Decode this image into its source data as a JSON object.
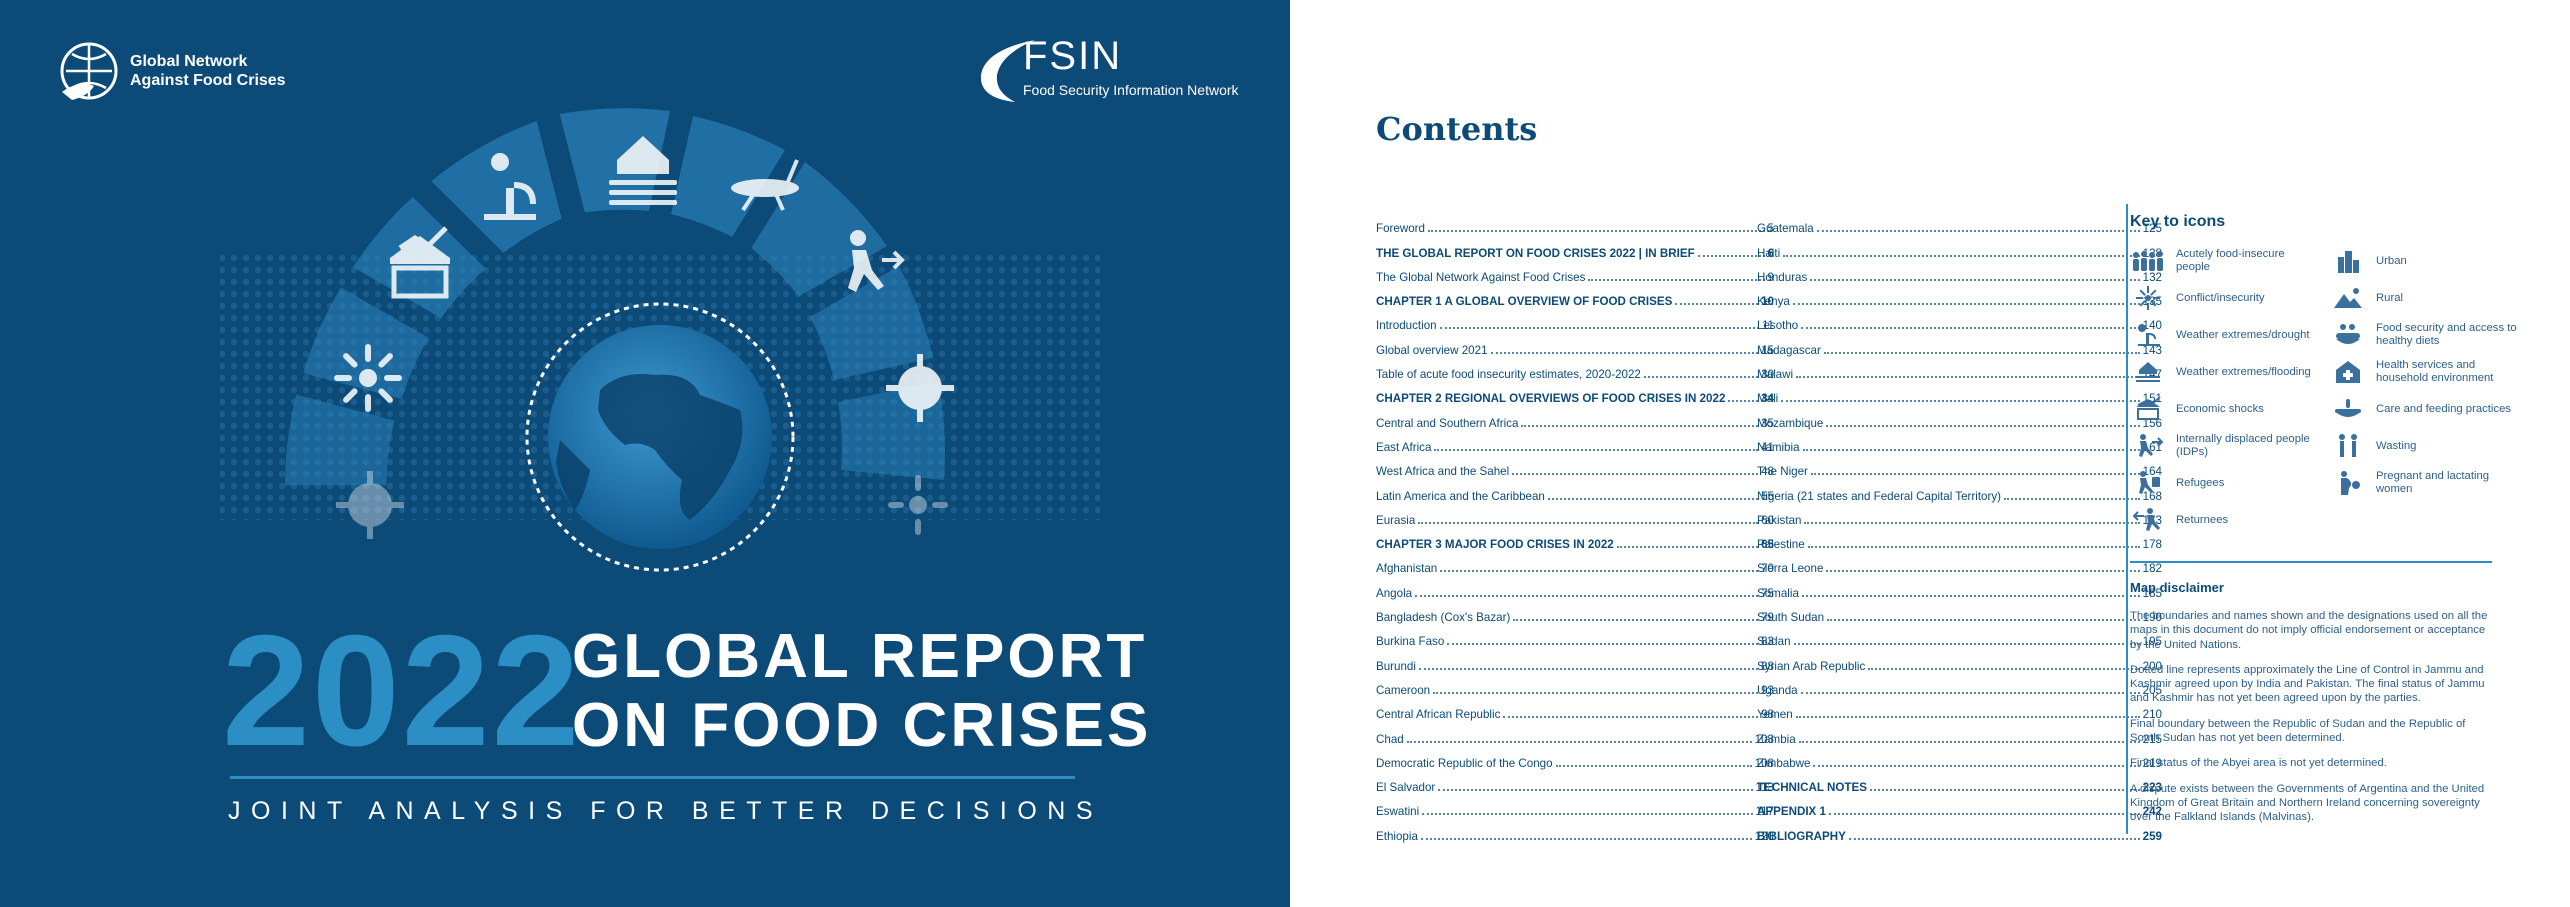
{
  "cover": {
    "org_name_line1": "Global Network",
    "org_name_line2": "Against Food Crises",
    "fsin_logo": "FSIN",
    "fsin_subtitle": "Food Security Information Network",
    "year": "2022",
    "title_line1": "GLOBAL REPORT",
    "title_line2": "ON FOOD CRISES",
    "tagline": "JOINT ANALYSIS FOR BETTER DECISIONS",
    "colors": {
      "background": "#0c4a78",
      "accent": "#2b8fc6"
    }
  },
  "contents": {
    "heading": "Contents",
    "left_column": [
      {
        "title": "Foreword",
        "page": "5",
        "bold": false
      },
      {
        "title": "THE GLOBAL REPORT ON FOOD CRISES 2022 | IN BRIEF",
        "page": "6",
        "bold": true
      },
      {
        "title": "The Global Network Against Food Crises",
        "page": "9",
        "bold": false
      },
      {
        "title": "CHAPTER 1 A GLOBAL OVERVIEW OF FOOD CRISES",
        "page": "10",
        "bold": true
      },
      {
        "title": "Introduction",
        "page": "11",
        "bold": false
      },
      {
        "title": "Global overview 2021",
        "page": "15",
        "bold": false
      },
      {
        "title": "Table of acute food insecurity estimates, 2020-2022",
        "page": "30",
        "bold": false
      },
      {
        "title": "CHAPTER 2 REGIONAL OVERVIEWS OF FOOD CRISES IN 2022",
        "page": "34",
        "bold": true
      },
      {
        "title": "Central and Southern Africa",
        "page": "35",
        "bold": false
      },
      {
        "title": "East Africa",
        "page": "41",
        "bold": false
      },
      {
        "title": "West Africa and the Sahel",
        "page": "48",
        "bold": false
      },
      {
        "title": "Latin America and the Caribbean",
        "page": "55",
        "bold": false
      },
      {
        "title": "Eurasia",
        "page": "60",
        "bold": false
      },
      {
        "title": "CHAPTER 3 MAJOR FOOD CRISES IN 2022",
        "page": "65",
        "bold": true
      },
      {
        "title": "Afghanistan",
        "page": "70",
        "bold": false
      },
      {
        "title": "Angola",
        "page": "75",
        "bold": false
      },
      {
        "title": "Bangladesh (Cox's Bazar)",
        "page": "79",
        "bold": false
      },
      {
        "title": "Burkina Faso",
        "page": "83",
        "bold": false
      },
      {
        "title": "Burundi",
        "page": "88",
        "bold": false
      },
      {
        "title": "Cameroon",
        "page": "93",
        "bold": false
      },
      {
        "title": "Central African Republic",
        "page": "98",
        "bold": false
      },
      {
        "title": "Chad",
        "page": "103",
        "bold": false
      },
      {
        "title": "Democratic Republic of the Congo",
        "page": "108",
        "bold": false
      },
      {
        "title": "El Salvador",
        "page": "113",
        "bold": false
      },
      {
        "title": "Eswatini",
        "page": "117",
        "bold": false
      },
      {
        "title": "Ethiopia",
        "page": "120",
        "bold": false
      }
    ],
    "right_column": [
      {
        "title": "Guatemala",
        "page": "125",
        "bold": false
      },
      {
        "title": "Haiti",
        "page": "128",
        "bold": false
      },
      {
        "title": "Honduras",
        "page": "132",
        "bold": false
      },
      {
        "title": "Kenya",
        "page": "135",
        "bold": false
      },
      {
        "title": "Lesotho",
        "page": "140",
        "bold": false
      },
      {
        "title": "Madagascar",
        "page": "143",
        "bold": false
      },
      {
        "title": "Malawi",
        "page": "147",
        "bold": false
      },
      {
        "title": "Mali",
        "page": "151",
        "bold": false
      },
      {
        "title": "Mozambique",
        "page": "156",
        "bold": false
      },
      {
        "title": "Namibia",
        "page": "161",
        "bold": false
      },
      {
        "title": "The Niger",
        "page": "164",
        "bold": false
      },
      {
        "title": "Nigeria (21 states and Federal Capital Territory)",
        "page": "168",
        "bold": false
      },
      {
        "title": "Pakistan",
        "page": "173",
        "bold": false
      },
      {
        "title": "Palestine",
        "page": "178",
        "bold": false
      },
      {
        "title": "Sierra Leone",
        "page": "182",
        "bold": false
      },
      {
        "title": "Somalia",
        "page": "185",
        "bold": false
      },
      {
        "title": "South Sudan",
        "page": "190",
        "bold": false
      },
      {
        "title": "Sudan",
        "page": "195",
        "bold": false
      },
      {
        "title": "Syrian Arab Republic",
        "page": "200",
        "bold": false
      },
      {
        "title": "Uganda",
        "page": "205",
        "bold": false
      },
      {
        "title": "Yemen",
        "page": "210",
        "bold": false
      },
      {
        "title": "Zambia",
        "page": "215",
        "bold": false
      },
      {
        "title": "Zimbabwe",
        "page": "219",
        "bold": false
      },
      {
        "title": "TECHNICAL NOTES",
        "page": "223",
        "bold": true
      },
      {
        "title": "APPENDIX 1",
        "page": "242",
        "bold": true
      },
      {
        "title": "BIBLIOGRAPHY",
        "page": "259",
        "bold": true
      }
    ]
  },
  "key_to_icons": {
    "title": "Key to icons",
    "items": [
      {
        "label": "Acutely food-insecure people",
        "icon": "people-group-icon"
      },
      {
        "label": "Conflict/insecurity",
        "icon": "conflict-burst-icon"
      },
      {
        "label": "Weather extremes/drought",
        "icon": "drought-icon"
      },
      {
        "label": "Weather extremes/flooding",
        "icon": "flooding-icon"
      },
      {
        "label": "Economic shocks",
        "icon": "economic-shock-icon"
      },
      {
        "label": "Internally displaced people (IDPs)",
        "icon": "displaced-person-icon"
      },
      {
        "label": "Refugees",
        "icon": "refugee-icon"
      },
      {
        "label": "Returnees",
        "icon": "returnee-icon"
      },
      {
        "label": "Urban",
        "icon": "urban-icon"
      },
      {
        "label": "Rural",
        "icon": "rural-icon"
      },
      {
        "label": "Food security and access to healthy diets",
        "icon": "food-access-icon"
      },
      {
        "label": "Health services and household environment",
        "icon": "health-services-icon"
      },
      {
        "label": "Care and feeding practices",
        "icon": "feeding-practices-icon"
      },
      {
        "label": "Wasting",
        "icon": "wasting-icon"
      },
      {
        "label": "Pregnant and lactating women",
        "icon": "pregnant-women-icon"
      }
    ]
  },
  "map_disclaimer": {
    "title": "Map disclaimer",
    "paragraphs": [
      "The boundaries and names shown and the designations used on all the maps in this document do not imply official endorsement or acceptance by the United Nations.",
      "Dotted line represents approximately the Line of Control in Jammu and Kashmir agreed upon by India and Pakistan. The final status of Jammu and Kashmir has not yet been agreed upon by the parties.",
      "Final boundary between the Republic of Sudan and the Republic of South Sudan has not yet been determined.",
      "Final status of the Abyei area is not yet determined.",
      "A dispute exists between the Governments of Argentina and the United Kingdom of Great Britain and Northern Ireland concerning sovereignty over the Falkland Islands (Malvinas)."
    ]
  }
}
